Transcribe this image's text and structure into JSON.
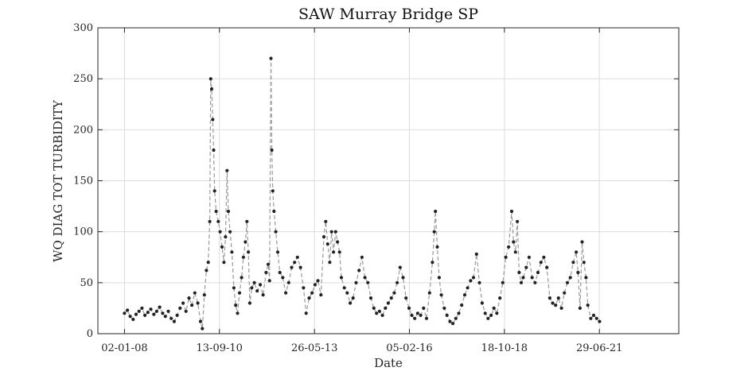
{
  "chart_data": {
    "type": "line",
    "title": "SAW Murray Bridge SP",
    "xlabel": "Date",
    "ylabel": "WQ DIAG TOT TURBIDITY",
    "xlim": [
      "2007-04-01",
      "2023-10-01"
    ],
    "ylim": [
      0,
      300
    ],
    "yticks": [
      0,
      50,
      100,
      150,
      200,
      250,
      300
    ],
    "xticks": [
      {
        "date": "2008-01-02",
        "label": "02-01-08"
      },
      {
        "date": "2010-09-13",
        "label": "13-09-10"
      },
      {
        "date": "2013-05-26",
        "label": "26-05-13"
      },
      {
        "date": "2016-02-05",
        "label": "05-02-16"
      },
      {
        "date": "2018-10-18",
        "label": "18-10-18"
      },
      {
        "date": "2021-06-29",
        "label": "29-06-21"
      }
    ],
    "grid": true,
    "series": [
      {
        "style": "dashed line with dot markers",
        "line_color": "#9a9a9a",
        "marker_color": "#222222",
        "points": [
          [
            "2008-01-02",
            20
          ],
          [
            "2008-02-01",
            23
          ],
          [
            "2008-03-01",
            17
          ],
          [
            "2008-04-01",
            14
          ],
          [
            "2008-05-01",
            19
          ],
          [
            "2008-06-01",
            22
          ],
          [
            "2008-07-01",
            25
          ],
          [
            "2008-08-01",
            18
          ],
          [
            "2008-09-01",
            21
          ],
          [
            "2008-10-01",
            24
          ],
          [
            "2008-11-01",
            19
          ],
          [
            "2008-12-01",
            22
          ],
          [
            "2009-01-01",
            26
          ],
          [
            "2009-02-01",
            20
          ],
          [
            "2009-03-01",
            17
          ],
          [
            "2009-04-01",
            22
          ],
          [
            "2009-05-01",
            15
          ],
          [
            "2009-06-01",
            12
          ],
          [
            "2009-07-01",
            18
          ],
          [
            "2009-08-01",
            25
          ],
          [
            "2009-09-01",
            30
          ],
          [
            "2009-10-01",
            22
          ],
          [
            "2009-11-01",
            35
          ],
          [
            "2009-12-01",
            28
          ],
          [
            "2010-01-01",
            40
          ],
          [
            "2010-02-01",
            30
          ],
          [
            "2010-03-01",
            12
          ],
          [
            "2010-03-20",
            5
          ],
          [
            "2010-04-10",
            38
          ],
          [
            "2010-05-01",
            62
          ],
          [
            "2010-05-20",
            70
          ],
          [
            "2010-06-05",
            110
          ],
          [
            "2010-06-15",
            250
          ],
          [
            "2010-06-25",
            240
          ],
          [
            "2010-07-05",
            210
          ],
          [
            "2010-07-15",
            180
          ],
          [
            "2010-07-25",
            140
          ],
          [
            "2010-08-10",
            120
          ],
          [
            "2010-09-01",
            110
          ],
          [
            "2010-09-20",
            100
          ],
          [
            "2010-10-10",
            85
          ],
          [
            "2010-10-30",
            70
          ],
          [
            "2010-11-15",
            95
          ],
          [
            "2010-12-01",
            160
          ],
          [
            "2010-12-15",
            120
          ],
          [
            "2011-01-01",
            100
          ],
          [
            "2011-01-20",
            80
          ],
          [
            "2011-02-10",
            45
          ],
          [
            "2011-03-01",
            28
          ],
          [
            "2011-03-20",
            20
          ],
          [
            "2011-04-10",
            40
          ],
          [
            "2011-05-01",
            55
          ],
          [
            "2011-05-20",
            75
          ],
          [
            "2011-06-10",
            90
          ],
          [
            "2011-06-25",
            110
          ],
          [
            "2011-07-10",
            80
          ],
          [
            "2011-07-25",
            30
          ],
          [
            "2011-08-15",
            45
          ],
          [
            "2011-09-10",
            50
          ],
          [
            "2011-10-10",
            42
          ],
          [
            "2011-11-10",
            48
          ],
          [
            "2011-12-10",
            38
          ],
          [
            "2012-01-10",
            60
          ],
          [
            "2012-02-01",
            68
          ],
          [
            "2012-02-15",
            52
          ],
          [
            "2012-03-01",
            270
          ],
          [
            "2012-03-10",
            180
          ],
          [
            "2012-03-20",
            140
          ],
          [
            "2012-04-01",
            120
          ],
          [
            "2012-04-20",
            100
          ],
          [
            "2012-05-10",
            80
          ],
          [
            "2012-06-01",
            60
          ],
          [
            "2012-07-01",
            55
          ],
          [
            "2012-08-01",
            40
          ],
          [
            "2012-09-01",
            50
          ],
          [
            "2012-10-01",
            65
          ],
          [
            "2012-11-01",
            70
          ],
          [
            "2012-12-01",
            75
          ],
          [
            "2013-01-01",
            65
          ],
          [
            "2013-02-01",
            45
          ],
          [
            "2013-03-01",
            20
          ],
          [
            "2013-04-01",
            35
          ],
          [
            "2013-05-01",
            40
          ],
          [
            "2013-06-01",
            48
          ],
          [
            "2013-07-01",
            52
          ],
          [
            "2013-08-01",
            38
          ],
          [
            "2013-09-01",
            95
          ],
          [
            "2013-09-20",
            110
          ],
          [
            "2013-10-10",
            88
          ],
          [
            "2013-11-01",
            70
          ],
          [
            "2013-11-20",
            100
          ],
          [
            "2013-12-10",
            80
          ],
          [
            "2014-01-01",
            100
          ],
          [
            "2014-01-20",
            90
          ],
          [
            "2014-02-10",
            80
          ],
          [
            "2014-03-01",
            55
          ],
          [
            "2014-04-01",
            45
          ],
          [
            "2014-05-01",
            40
          ],
          [
            "2014-06-01",
            30
          ],
          [
            "2014-07-01",
            35
          ],
          [
            "2014-08-01",
            50
          ],
          [
            "2014-09-01",
            62
          ],
          [
            "2014-10-01",
            75
          ],
          [
            "2014-11-01",
            55
          ],
          [
            "2014-12-01",
            50
          ],
          [
            "2015-01-01",
            35
          ],
          [
            "2015-02-01",
            25
          ],
          [
            "2015-03-01",
            20
          ],
          [
            "2015-04-01",
            22
          ],
          [
            "2015-05-01",
            18
          ],
          [
            "2015-06-01",
            25
          ],
          [
            "2015-07-01",
            30
          ],
          [
            "2015-08-01",
            35
          ],
          [
            "2015-09-01",
            40
          ],
          [
            "2015-10-01",
            50
          ],
          [
            "2015-11-01",
            65
          ],
          [
            "2015-12-01",
            55
          ],
          [
            "2016-01-01",
            35
          ],
          [
            "2016-02-01",
            25
          ],
          [
            "2016-03-01",
            18
          ],
          [
            "2016-04-01",
            15
          ],
          [
            "2016-05-01",
            20
          ],
          [
            "2016-06-01",
            18
          ],
          [
            "2016-07-01",
            25
          ],
          [
            "2016-08-01",
            15
          ],
          [
            "2016-09-01",
            40
          ],
          [
            "2016-10-01",
            70
          ],
          [
            "2016-10-20",
            100
          ],
          [
            "2016-11-01",
            120
          ],
          [
            "2016-11-20",
            85
          ],
          [
            "2016-12-10",
            55
          ],
          [
            "2017-01-01",
            38
          ],
          [
            "2017-02-01",
            25
          ],
          [
            "2017-03-01",
            18
          ],
          [
            "2017-04-01",
            12
          ],
          [
            "2017-05-01",
            10
          ],
          [
            "2017-06-01",
            15
          ],
          [
            "2017-07-01",
            20
          ],
          [
            "2017-08-01",
            28
          ],
          [
            "2017-09-01",
            38
          ],
          [
            "2017-10-01",
            45
          ],
          [
            "2017-11-01",
            52
          ],
          [
            "2017-12-01",
            55
          ],
          [
            "2018-01-01",
            78
          ],
          [
            "2018-02-01",
            50
          ],
          [
            "2018-03-01",
            30
          ],
          [
            "2018-04-01",
            20
          ],
          [
            "2018-05-01",
            15
          ],
          [
            "2018-06-01",
            18
          ],
          [
            "2018-07-01",
            25
          ],
          [
            "2018-08-01",
            20
          ],
          [
            "2018-09-01",
            35
          ],
          [
            "2018-10-01",
            50
          ],
          [
            "2018-11-01",
            75
          ],
          [
            "2018-12-01",
            85
          ],
          [
            "2019-01-01",
            120
          ],
          [
            "2019-01-20",
            90
          ],
          [
            "2019-02-10",
            80
          ],
          [
            "2019-03-01",
            110
          ],
          [
            "2019-03-20",
            60
          ],
          [
            "2019-04-10",
            50
          ],
          [
            "2019-05-01",
            55
          ],
          [
            "2019-06-01",
            65
          ],
          [
            "2019-07-01",
            75
          ],
          [
            "2019-08-01",
            55
          ],
          [
            "2019-09-01",
            50
          ],
          [
            "2019-10-01",
            60
          ],
          [
            "2019-11-01",
            70
          ],
          [
            "2019-12-01",
            75
          ],
          [
            "2020-01-01",
            65
          ],
          [
            "2020-02-01",
            35
          ],
          [
            "2020-03-01",
            30
          ],
          [
            "2020-04-01",
            28
          ],
          [
            "2020-05-01",
            35
          ],
          [
            "2020-06-01",
            25
          ],
          [
            "2020-07-01",
            40
          ],
          [
            "2020-08-01",
            50
          ],
          [
            "2020-09-01",
            55
          ],
          [
            "2020-10-01",
            70
          ],
          [
            "2020-11-01",
            80
          ],
          [
            "2020-11-20",
            60
          ],
          [
            "2020-12-10",
            25
          ],
          [
            "2021-01-01",
            90
          ],
          [
            "2021-01-20",
            70
          ],
          [
            "2021-02-10",
            55
          ],
          [
            "2021-03-01",
            28
          ],
          [
            "2021-04-01",
            15
          ],
          [
            "2021-05-01",
            18
          ],
          [
            "2021-06-01",
            15
          ],
          [
            "2021-07-01",
            12
          ]
        ]
      }
    ]
  }
}
